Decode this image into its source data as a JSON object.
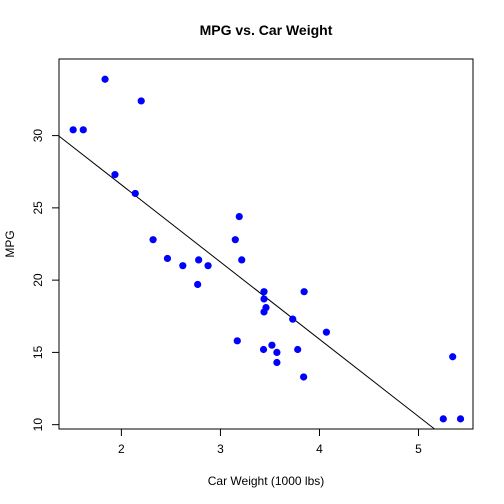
{
  "chart_data": {
    "type": "scatter",
    "title": "MPG vs. Car Weight",
    "xlabel": "Car Weight (1000 lbs)",
    "ylabel": "MPG",
    "xlim": [
      1.37,
      5.55
    ],
    "ylim": [
      9.7,
      35.3
    ],
    "x_ticks": [
      {
        "value": 2,
        "label": "2"
      },
      {
        "value": 3,
        "label": "3"
      },
      {
        "value": 4,
        "label": "4"
      },
      {
        "value": 5,
        "label": "5"
      }
    ],
    "y_ticks": [
      {
        "value": 10,
        "label": "10"
      },
      {
        "value": 15,
        "label": "15"
      },
      {
        "value": 20,
        "label": "20"
      },
      {
        "value": 25,
        "label": "25"
      },
      {
        "value": 30,
        "label": "30"
      }
    ],
    "grid": false,
    "point_color": "#0000ff",
    "line_color": "#000000",
    "points": [
      {
        "x": 1.513,
        "y": 30.4
      },
      {
        "x": 1.615,
        "y": 30.4
      },
      {
        "x": 1.835,
        "y": 33.9
      },
      {
        "x": 1.935,
        "y": 27.3
      },
      {
        "x": 2.14,
        "y": 26.0
      },
      {
        "x": 2.2,
        "y": 32.4
      },
      {
        "x": 2.32,
        "y": 22.8
      },
      {
        "x": 2.465,
        "y": 21.5
      },
      {
        "x": 2.62,
        "y": 21.0
      },
      {
        "x": 2.77,
        "y": 19.7
      },
      {
        "x": 2.78,
        "y": 21.4
      },
      {
        "x": 2.875,
        "y": 21.0
      },
      {
        "x": 3.15,
        "y": 22.8
      },
      {
        "x": 3.17,
        "y": 15.8
      },
      {
        "x": 3.19,
        "y": 24.4
      },
      {
        "x": 3.215,
        "y": 21.4
      },
      {
        "x": 3.435,
        "y": 15.2
      },
      {
        "x": 3.44,
        "y": 18.7
      },
      {
        "x": 3.44,
        "y": 19.2
      },
      {
        "x": 3.44,
        "y": 17.8
      },
      {
        "x": 3.46,
        "y": 18.1
      },
      {
        "x": 3.52,
        "y": 15.5
      },
      {
        "x": 3.57,
        "y": 14.3
      },
      {
        "x": 3.57,
        "y": 15.0
      },
      {
        "x": 3.73,
        "y": 17.3
      },
      {
        "x": 3.78,
        "y": 15.2
      },
      {
        "x": 3.84,
        "y": 13.3
      },
      {
        "x": 3.845,
        "y": 19.2
      },
      {
        "x": 4.07,
        "y": 16.4
      },
      {
        "x": 5.25,
        "y": 10.4
      },
      {
        "x": 5.345,
        "y": 14.7
      },
      {
        "x": 5.424,
        "y": 10.4
      }
    ],
    "regression": {
      "intercept": 37.285,
      "slope": -5.344
    }
  }
}
